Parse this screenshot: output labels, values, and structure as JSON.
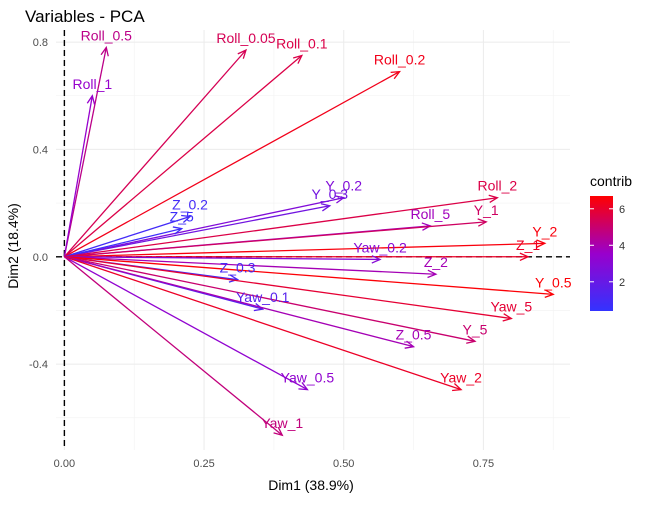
{
  "chart_data": {
    "type": "scatter",
    "subtype": "pca-variable-arrows",
    "title": "Variables - PCA",
    "xlabel": "Dim1 (38.9%)",
    "ylabel": "Dim2 (18.4%)",
    "xlim": [
      -0.015,
      0.905
    ],
    "ylim": [
      -0.72,
      0.845
    ],
    "x_ticks": [
      0.0,
      0.25,
      0.5,
      0.75
    ],
    "x_tick_labels": [
      "0.00",
      "0.25",
      "0.50",
      "0.75"
    ],
    "y_ticks": [
      -0.4,
      0.0,
      0.4,
      0.8
    ],
    "y_tick_labels": [
      "-0.4",
      "0.0",
      "0.4",
      "0.8"
    ],
    "grid": true,
    "reference_lines": {
      "x": 0,
      "y": 0,
      "style": "dashed"
    },
    "legend": {
      "title": "contrib",
      "type": "colorbar",
      "placement": "right",
      "ticks": [
        2,
        4,
        6
      ],
      "tick_labels": [
        "2",
        "4",
        "6"
      ],
      "range": [
        0.4,
        6.7
      ],
      "colors": {
        "low": "#3333ff",
        "mid": "#9900cc",
        "high": "#ff0000"
      }
    },
    "variables": [
      {
        "name": "Roll_0.5",
        "x": 0.075,
        "y": 0.78,
        "contrib": 4.6
      },
      {
        "name": "Roll_1",
        "x": 0.05,
        "y": 0.6,
        "contrib": 3.5
      },
      {
        "name": "Roll_0.05",
        "x": 0.325,
        "y": 0.77,
        "contrib": 5.4
      },
      {
        "name": "Roll_0.1",
        "x": 0.425,
        "y": 0.75,
        "contrib": 5.6
      },
      {
        "name": "Roll_0.2",
        "x": 0.6,
        "y": 0.69,
        "contrib": 6.3
      },
      {
        "name": "Y_0.2",
        "x": 0.5,
        "y": 0.22,
        "contrib": 2.8
      },
      {
        "name": "Y_0.3",
        "x": 0.475,
        "y": 0.19,
        "contrib": 2.3
      },
      {
        "name": "Z_0.2",
        "x": 0.225,
        "y": 0.15,
        "contrib": 0.9
      },
      {
        "name": "Z_5",
        "x": 0.21,
        "y": 0.105,
        "contrib": 0.7
      },
      {
        "name": "Roll_2",
        "x": 0.775,
        "y": 0.22,
        "contrib": 5.6
      },
      {
        "name": "Roll_5",
        "x": 0.655,
        "y": 0.115,
        "contrib": 3.8
      },
      {
        "name": "Y_1",
        "x": 0.755,
        "y": 0.13,
        "contrib": 5.2
      },
      {
        "name": "Y_2",
        "x": 0.86,
        "y": 0.05,
        "contrib": 6.5
      },
      {
        "name": "Z_1",
        "x": 0.83,
        "y": 0.0,
        "contrib": 6.1
      },
      {
        "name": "Yaw_0.2",
        "x": 0.565,
        "y": -0.01,
        "contrib": 3.0
      },
      {
        "name": "Z_2",
        "x": 0.665,
        "y": -0.065,
        "contrib": 3.9
      },
      {
        "name": "Z_0.3",
        "x": 0.31,
        "y": -0.085,
        "contrib": 1.0
      },
      {
        "name": "Yaw_0.1",
        "x": 0.355,
        "y": -0.195,
        "contrib": 1.5
      },
      {
        "name": "Y_0.5",
        "x": 0.875,
        "y": -0.14,
        "contrib": 6.6
      },
      {
        "name": "Yaw_5",
        "x": 0.8,
        "y": -0.23,
        "contrib": 5.9
      },
      {
        "name": "Y_5",
        "x": 0.735,
        "y": -0.315,
        "contrib": 5.0
      },
      {
        "name": "Z_0.5",
        "x": 0.625,
        "y": -0.335,
        "contrib": 3.9
      },
      {
        "name": "Yaw_2",
        "x": 0.71,
        "y": -0.495,
        "contrib": 6.1
      },
      {
        "name": "Yaw_0.5",
        "x": 0.435,
        "y": -0.495,
        "contrib": 3.3
      },
      {
        "name": "Yaw_1",
        "x": 0.39,
        "y": -0.665,
        "contrib": 4.8
      }
    ]
  }
}
